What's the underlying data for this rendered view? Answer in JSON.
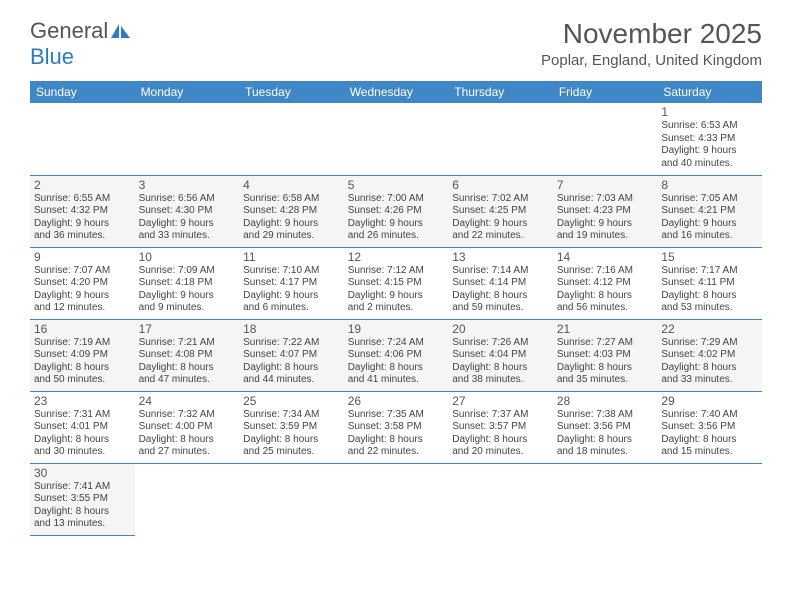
{
  "brand": {
    "part1": "General",
    "part2": "Blue"
  },
  "title": "November 2025",
  "location": "Poplar, England, United Kingdom",
  "colors": {
    "header_bg": "#3f87c6",
    "header_text": "#ffffff",
    "border": "#3f87c6",
    "alt_row_bg": "#f5f5f5",
    "text": "#444444",
    "title_color": "#555555"
  },
  "dayHeaders": [
    "Sunday",
    "Monday",
    "Tuesday",
    "Wednesday",
    "Thursday",
    "Friday",
    "Saturday"
  ],
  "weeks": [
    [
      null,
      null,
      null,
      null,
      null,
      null,
      {
        "n": "1",
        "sunrise": "6:53 AM",
        "sunset": "4:33 PM",
        "dl1": "9 hours",
        "dl2": "and 40 minutes."
      }
    ],
    [
      {
        "n": "2",
        "sunrise": "6:55 AM",
        "sunset": "4:32 PM",
        "dl1": "9 hours",
        "dl2": "and 36 minutes."
      },
      {
        "n": "3",
        "sunrise": "6:56 AM",
        "sunset": "4:30 PM",
        "dl1": "9 hours",
        "dl2": "and 33 minutes."
      },
      {
        "n": "4",
        "sunrise": "6:58 AM",
        "sunset": "4:28 PM",
        "dl1": "9 hours",
        "dl2": "and 29 minutes."
      },
      {
        "n": "5",
        "sunrise": "7:00 AM",
        "sunset": "4:26 PM",
        "dl1": "9 hours",
        "dl2": "and 26 minutes."
      },
      {
        "n": "6",
        "sunrise": "7:02 AM",
        "sunset": "4:25 PM",
        "dl1": "9 hours",
        "dl2": "and 22 minutes."
      },
      {
        "n": "7",
        "sunrise": "7:03 AM",
        "sunset": "4:23 PM",
        "dl1": "9 hours",
        "dl2": "and 19 minutes."
      },
      {
        "n": "8",
        "sunrise": "7:05 AM",
        "sunset": "4:21 PM",
        "dl1": "9 hours",
        "dl2": "and 16 minutes."
      }
    ],
    [
      {
        "n": "9",
        "sunrise": "7:07 AM",
        "sunset": "4:20 PM",
        "dl1": "9 hours",
        "dl2": "and 12 minutes."
      },
      {
        "n": "10",
        "sunrise": "7:09 AM",
        "sunset": "4:18 PM",
        "dl1": "9 hours",
        "dl2": "and 9 minutes."
      },
      {
        "n": "11",
        "sunrise": "7:10 AM",
        "sunset": "4:17 PM",
        "dl1": "9 hours",
        "dl2": "and 6 minutes."
      },
      {
        "n": "12",
        "sunrise": "7:12 AM",
        "sunset": "4:15 PM",
        "dl1": "9 hours",
        "dl2": "and 2 minutes."
      },
      {
        "n": "13",
        "sunrise": "7:14 AM",
        "sunset": "4:14 PM",
        "dl1": "8 hours",
        "dl2": "and 59 minutes."
      },
      {
        "n": "14",
        "sunrise": "7:16 AM",
        "sunset": "4:12 PM",
        "dl1": "8 hours",
        "dl2": "and 56 minutes."
      },
      {
        "n": "15",
        "sunrise": "7:17 AM",
        "sunset": "4:11 PM",
        "dl1": "8 hours",
        "dl2": "and 53 minutes."
      }
    ],
    [
      {
        "n": "16",
        "sunrise": "7:19 AM",
        "sunset": "4:09 PM",
        "dl1": "8 hours",
        "dl2": "and 50 minutes."
      },
      {
        "n": "17",
        "sunrise": "7:21 AM",
        "sunset": "4:08 PM",
        "dl1": "8 hours",
        "dl2": "and 47 minutes."
      },
      {
        "n": "18",
        "sunrise": "7:22 AM",
        "sunset": "4:07 PM",
        "dl1": "8 hours",
        "dl2": "and 44 minutes."
      },
      {
        "n": "19",
        "sunrise": "7:24 AM",
        "sunset": "4:06 PM",
        "dl1": "8 hours",
        "dl2": "and 41 minutes."
      },
      {
        "n": "20",
        "sunrise": "7:26 AM",
        "sunset": "4:04 PM",
        "dl1": "8 hours",
        "dl2": "and 38 minutes."
      },
      {
        "n": "21",
        "sunrise": "7:27 AM",
        "sunset": "4:03 PM",
        "dl1": "8 hours",
        "dl2": "and 35 minutes."
      },
      {
        "n": "22",
        "sunrise": "7:29 AM",
        "sunset": "4:02 PM",
        "dl1": "8 hours",
        "dl2": "and 33 minutes."
      }
    ],
    [
      {
        "n": "23",
        "sunrise": "7:31 AM",
        "sunset": "4:01 PM",
        "dl1": "8 hours",
        "dl2": "and 30 minutes."
      },
      {
        "n": "24",
        "sunrise": "7:32 AM",
        "sunset": "4:00 PM",
        "dl1": "8 hours",
        "dl2": "and 27 minutes."
      },
      {
        "n": "25",
        "sunrise": "7:34 AM",
        "sunset": "3:59 PM",
        "dl1": "8 hours",
        "dl2": "and 25 minutes."
      },
      {
        "n": "26",
        "sunrise": "7:35 AM",
        "sunset": "3:58 PM",
        "dl1": "8 hours",
        "dl2": "and 22 minutes."
      },
      {
        "n": "27",
        "sunrise": "7:37 AM",
        "sunset": "3:57 PM",
        "dl1": "8 hours",
        "dl2": "and 20 minutes."
      },
      {
        "n": "28",
        "sunrise": "7:38 AM",
        "sunset": "3:56 PM",
        "dl1": "8 hours",
        "dl2": "and 18 minutes."
      },
      {
        "n": "29",
        "sunrise": "7:40 AM",
        "sunset": "3:56 PM",
        "dl1": "8 hours",
        "dl2": "and 15 minutes."
      }
    ],
    [
      {
        "n": "30",
        "sunrise": "7:41 AM",
        "sunset": "3:55 PM",
        "dl1": "8 hours",
        "dl2": "and 13 minutes."
      },
      null,
      null,
      null,
      null,
      null,
      null
    ]
  ],
  "labels": {
    "sunrise": "Sunrise:",
    "sunset": "Sunset:",
    "daylight": "Daylight:"
  }
}
